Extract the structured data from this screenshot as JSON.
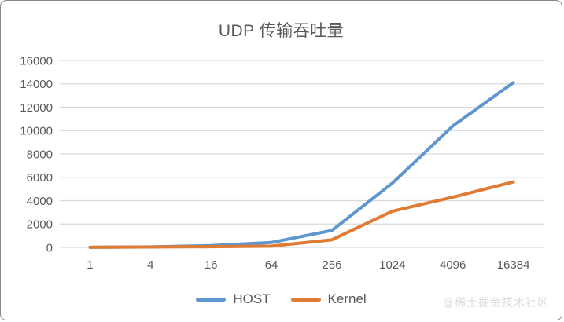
{
  "chart_data": {
    "type": "line",
    "title": "UDP 传输吞吐量",
    "categories": [
      "1",
      "4",
      "16",
      "64",
      "256",
      "1024",
      "4096",
      "16384"
    ],
    "series": [
      {
        "name": "HOST",
        "color": "#5f96ce",
        "values": [
          10,
          40,
          150,
          420,
          1450,
          5500,
          10400,
          14100
        ]
      },
      {
        "name": "Kernel",
        "color": "#e07b34",
        "values": [
          10,
          30,
          60,
          110,
          650,
          3100,
          4300,
          5600
        ]
      }
    ],
    "xlabel": "",
    "ylabel": "",
    "ylim": [
      0,
      16000
    ],
    "ytick_step": 2000,
    "grid": true,
    "legend_position": "bottom"
  },
  "watermark": "@稀土掘金技术社区",
  "colors": {
    "grid": "#d9d9d9",
    "tick_text": "#595959",
    "title_text": "#595959",
    "watermark": "#dbdbdb"
  }
}
